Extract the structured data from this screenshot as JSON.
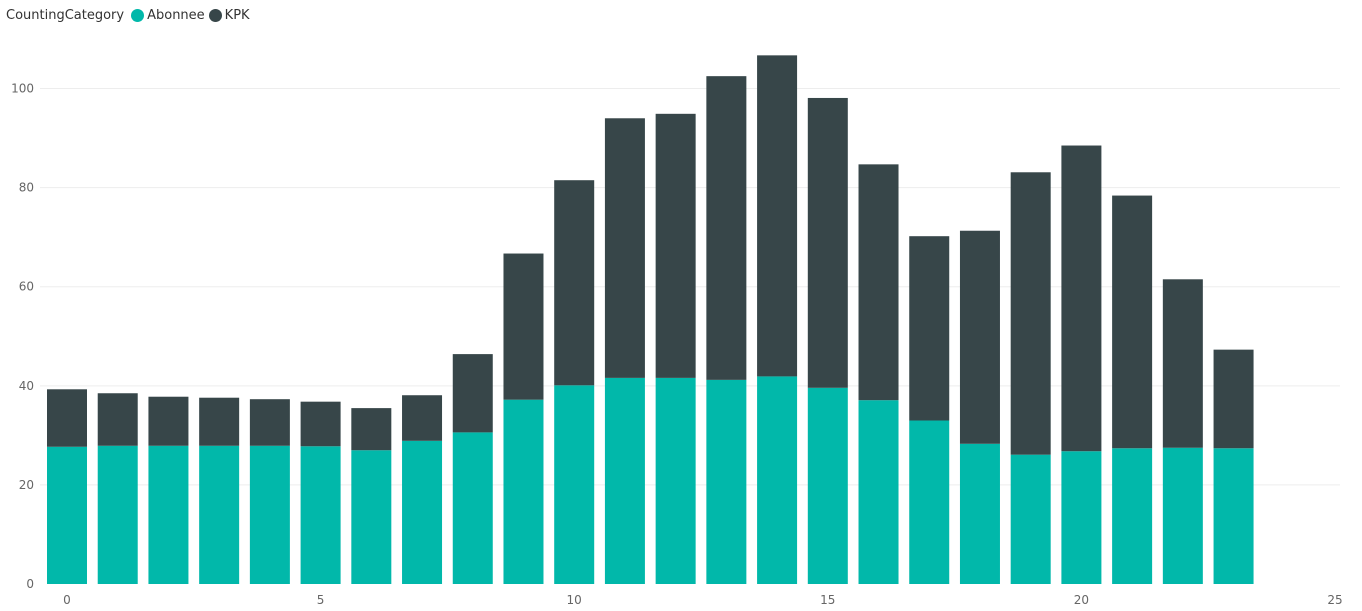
{
  "chart_data": {
    "type": "bar",
    "stacked": true,
    "legend": {
      "title": "CountingCategory",
      "position": "top-left"
    },
    "x": [
      0,
      1,
      2,
      3,
      4,
      5,
      6,
      7,
      8,
      9,
      10,
      11,
      12,
      13,
      14,
      15,
      16,
      17,
      18,
      19,
      20,
      21,
      22,
      23
    ],
    "series": [
      {
        "name": "Abonnee",
        "color": "#01B8AA",
        "values": [
          27.7,
          27.9,
          27.9,
          27.9,
          27.9,
          27.8,
          27.0,
          28.9,
          30.6,
          37.2,
          40.1,
          41.6,
          41.6,
          41.2,
          41.9,
          39.6,
          37.1,
          33.0,
          28.3,
          26.1,
          26.8,
          27.4,
          27.5,
          27.4
        ]
      },
      {
        "name": "KPK",
        "color": "#374649",
        "values": [
          11.6,
          10.6,
          9.9,
          9.7,
          9.4,
          9.0,
          8.5,
          9.2,
          15.8,
          29.5,
          41.4,
          52.4,
          53.3,
          61.3,
          64.8,
          58.5,
          47.6,
          37.2,
          43.0,
          57.0,
          61.7,
          51.0,
          34.0,
          19.9
        ]
      }
    ],
    "xlim": [
      0,
      25
    ],
    "ylim": [
      0,
      110
    ],
    "x_ticks": [
      "0",
      "5",
      "10",
      "15",
      "20",
      "25"
    ],
    "y_ticks": [
      "0",
      "20",
      "40",
      "60",
      "80",
      "100"
    ],
    "xlabel": "",
    "ylabel": "",
    "grid": true
  }
}
